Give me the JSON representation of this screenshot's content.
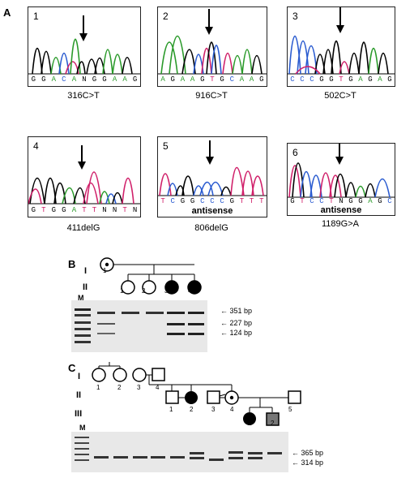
{
  "panels": {
    "a": "A",
    "b": "B",
    "c": "C"
  },
  "traces": [
    {
      "num": "1",
      "mutation": "316C>T",
      "bases": [
        [
          "G",
          "#000"
        ],
        [
          "G",
          "#000"
        ],
        [
          "A",
          "#2a9a2a"
        ],
        [
          "C",
          "#2a5bd0"
        ],
        [
          "A",
          "#2a9a2a"
        ],
        [
          "N",
          "#000"
        ],
        [
          "G",
          "#000"
        ],
        [
          "G",
          "#000"
        ],
        [
          "A",
          "#2a9a2a"
        ],
        [
          "A",
          "#2a9a2a"
        ],
        [
          "G",
          "#000"
        ]
      ],
      "sub": ""
    },
    {
      "num": "2",
      "mutation": "916C>T",
      "bases": [
        [
          "A",
          "#2a9a2a"
        ],
        [
          "G",
          "#000"
        ],
        [
          "A",
          "#2a9a2a"
        ],
        [
          "A",
          "#2a9a2a"
        ],
        [
          "G",
          "#000"
        ],
        [
          "T",
          "#d0206a"
        ],
        [
          "G",
          "#000"
        ],
        [
          "C",
          "#2a5bd0"
        ],
        [
          "A",
          "#2a9a2a"
        ],
        [
          "A",
          "#2a9a2a"
        ],
        [
          "G",
          "#000"
        ]
      ],
      "sub": ""
    },
    {
      "num": "3",
      "mutation": "502C>T",
      "bases": [
        [
          "C",
          "#2a5bd0"
        ],
        [
          "C",
          "#2a5bd0"
        ],
        [
          "C",
          "#2a5bd0"
        ],
        [
          "G",
          "#000"
        ],
        [
          "G",
          "#000"
        ],
        [
          "T",
          "#d0206a"
        ],
        [
          "G",
          "#000"
        ],
        [
          "A",
          "#2a9a2a"
        ],
        [
          "G",
          "#000"
        ],
        [
          "A",
          "#2a9a2a"
        ],
        [
          "G",
          "#000"
        ]
      ],
      "sub": ""
    },
    {
      "num": "4",
      "mutation": "411delG",
      "bases": [
        [
          "G",
          "#000"
        ],
        [
          "T",
          "#d0206a"
        ],
        [
          "G",
          "#000"
        ],
        [
          "G",
          "#000"
        ],
        [
          "A",
          "#2a9a2a"
        ],
        [
          "T",
          "#d0206a"
        ],
        [
          "T",
          "#d0206a"
        ],
        [
          "N",
          "#000"
        ],
        [
          "N",
          "#000"
        ],
        [
          "T",
          "#d0206a"
        ],
        [
          "N",
          "#000"
        ]
      ],
      "sub": ""
    },
    {
      "num": "5",
      "mutation": "806delG",
      "bases": [
        [
          "T",
          "#d0206a"
        ],
        [
          "C",
          "#2a5bd0"
        ],
        [
          "G",
          "#000"
        ],
        [
          "G",
          "#000"
        ],
        [
          "C",
          "#2a5bd0"
        ],
        [
          "C",
          "#2a5bd0"
        ],
        [
          "C",
          "#2a5bd0"
        ],
        [
          "G",
          "#000"
        ],
        [
          "T",
          "#d0206a"
        ],
        [
          "T",
          "#d0206a"
        ],
        [
          "T",
          "#d0206a"
        ]
      ],
      "sub": "antisense"
    },
    {
      "num": "6",
      "mutation": "1189G>A",
      "bases": [
        [
          "G",
          "#000"
        ],
        [
          "T",
          "#d0206a"
        ],
        [
          "C",
          "#2a5bd0"
        ],
        [
          "C",
          "#2a5bd0"
        ],
        [
          "T",
          "#d0206a"
        ],
        [
          "N",
          "#000"
        ],
        [
          "G",
          "#000"
        ],
        [
          "G",
          "#000"
        ],
        [
          "A",
          "#2a9a2a"
        ],
        [
          "G",
          "#000"
        ],
        [
          "C",
          "#2a5bd0"
        ]
      ],
      "sub": "antisense"
    }
  ],
  "pedigree_b": {
    "gens": [
      "I",
      "II"
    ],
    "founder": "1",
    "children": [
      "1",
      "2",
      "3",
      "4"
    ],
    "marker": "M",
    "bands": [
      "351 bp",
      "227 bp",
      "124 bp"
    ]
  },
  "pedigree_c": {
    "gens": [
      "I",
      "II",
      "III"
    ],
    "gen1": [
      "1",
      "2",
      "3",
      "4"
    ],
    "gen2": [
      "1",
      "2",
      "3",
      "4",
      "5"
    ],
    "gen3": [
      "1",
      "2"
    ],
    "marker": "M",
    "bands": [
      "365 bp",
      "314 bp"
    ]
  },
  "colors": {
    "black": "#000000",
    "green": "#2a9a2a",
    "blue": "#2a5bd0",
    "red": "#d0206a",
    "gel": "#e8e8e8"
  }
}
